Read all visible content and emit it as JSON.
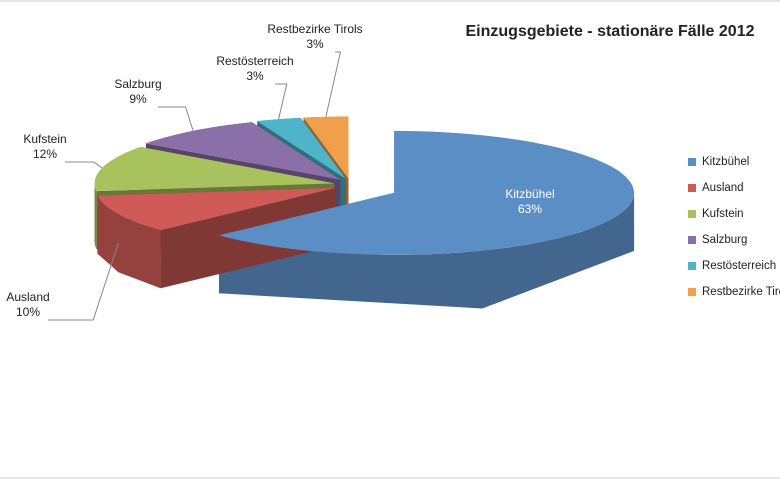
{
  "chart_data": {
    "type": "pie3d",
    "title": "Einzugsgebiete - stationäre Fälle 2012",
    "categories": [
      "Kitzbühel",
      "Ausland",
      "Kufstein",
      "Salzburg",
      "Restösterreich",
      "Restbezirke Tirols"
    ],
    "values": [
      63,
      10,
      12,
      9,
      3,
      3
    ],
    "value_labels": [
      "63%",
      "10%",
      "12%",
      "9%",
      "3%",
      "3%"
    ],
    "colors": [
      "#5b8ec4",
      "#cf5a56",
      "#a8c25e",
      "#8a6fa8",
      "#4fb3c9",
      "#f0a04b"
    ]
  }
}
